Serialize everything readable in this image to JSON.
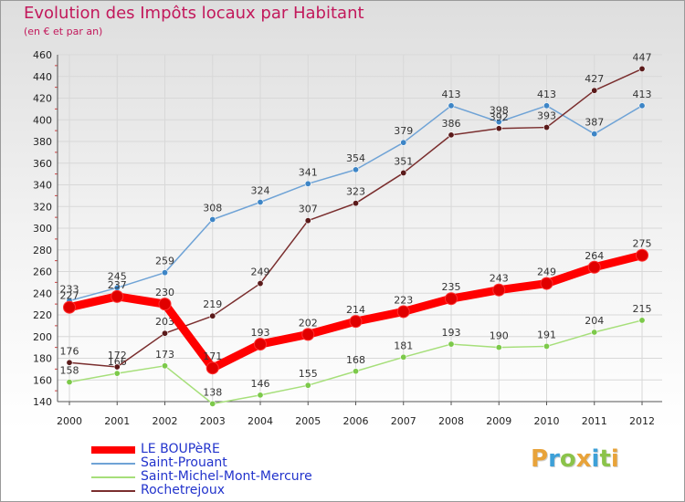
{
  "header": {
    "title": "Evolution des Impôts locaux par Habitant",
    "subtitle": "(en € et par an)"
  },
  "chart_data": {
    "type": "line",
    "x": [
      2000,
      2001,
      2002,
      2003,
      2004,
      2005,
      2006,
      2007,
      2008,
      2009,
      2010,
      2011,
      2012
    ],
    "ylim": [
      140,
      460
    ],
    "yticks": [
      140,
      160,
      180,
      200,
      220,
      240,
      260,
      280,
      300,
      320,
      340,
      360,
      380,
      400,
      420,
      440,
      460
    ],
    "grid": true,
    "legend_position": "bottom-left",
    "series": [
      {
        "name": "LE BOUPèRE",
        "color": "#ff0000",
        "marker": "#e00000",
        "emphasis": true,
        "values": [
          227,
          237,
          230,
          171,
          193,
          202,
          214,
          223,
          235,
          243,
          249,
          264,
          275
        ]
      },
      {
        "name": "Saint-Prouant",
        "color": "#6fa3d6",
        "marker": "#3d85c6",
        "values": [
          233,
          245,
          259,
          308,
          324,
          341,
          354,
          379,
          413,
          398,
          413,
          387,
          413
        ]
      },
      {
        "name": "Saint-Michel-Mont-Mercure",
        "color": "#a6df7a",
        "marker": "#7cc94a",
        "values": [
          158,
          166,
          173,
          138,
          146,
          155,
          168,
          181,
          193,
          190,
          191,
          204,
          215
        ]
      },
      {
        "name": "Rochetrejoux",
        "color": "#7a2e2e",
        "marker": "#5a1a1a",
        "values": [
          176,
          172,
          203,
          219,
          249,
          307,
          323,
          351,
          386,
          392,
          393,
          427,
          447
        ]
      }
    ]
  },
  "logo": {
    "letters": [
      "P",
      "r",
      "o",
      "x",
      "i",
      "t",
      "i"
    ],
    "colors": [
      "#e8a33a",
      "#3da0d8",
      "#8bc34a",
      "#e8a33a",
      "#3da0d8",
      "#8bc34a",
      "#e8a33a"
    ]
  }
}
